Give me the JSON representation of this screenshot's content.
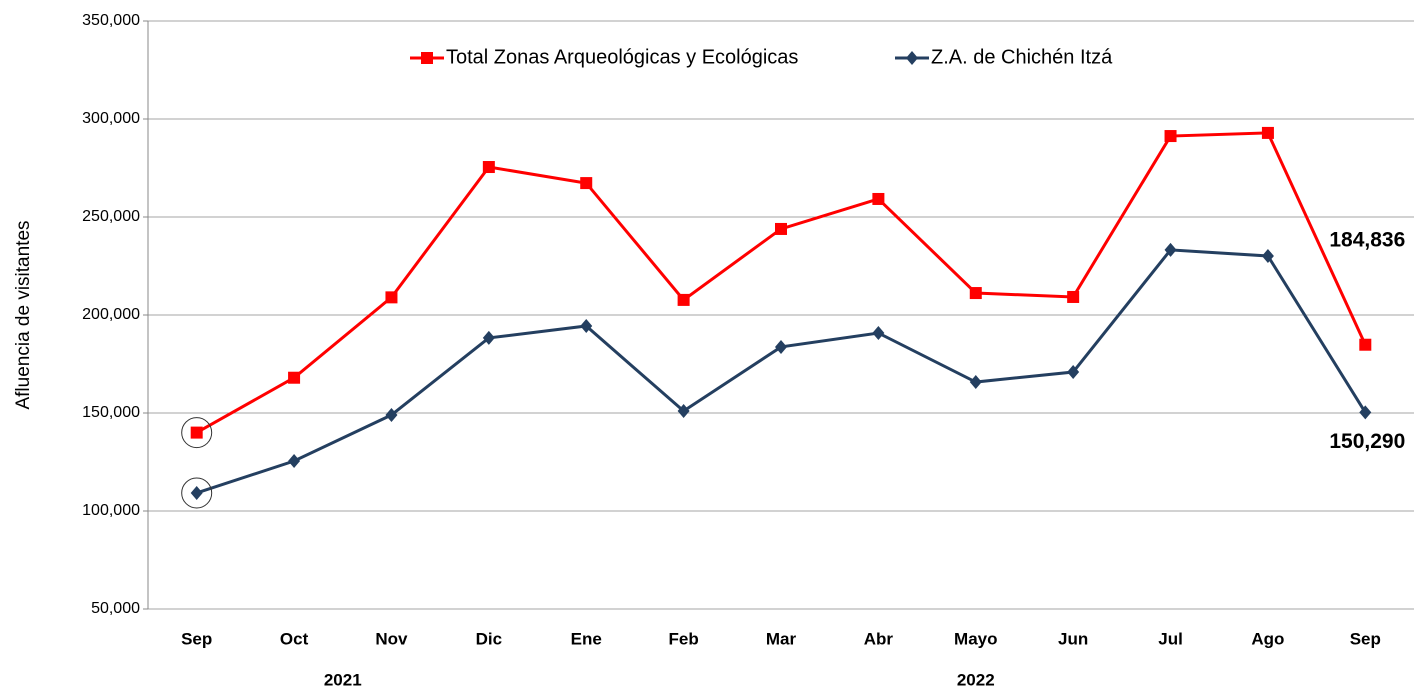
{
  "chart_data": {
    "type": "line",
    "y_label": "Afluencia de visitantes",
    "categories": [
      "Sep",
      "Oct",
      "Nov",
      "Dic",
      "Ene",
      "Feb",
      "Mar",
      "Abr",
      "Mayo",
      "Jun",
      "Jul",
      "Ago",
      "Sep"
    ],
    "x_group_labels": [
      "2021",
      "2022"
    ],
    "series": [
      {
        "name": "Total Zonas Arqueológicas y Ecológicas",
        "color": "#ff0000",
        "marker": "square",
        "values": [
          140000,
          168000,
          209000,
          275500,
          267300,
          207700,
          243900,
          259200,
          211200,
          209200,
          291300,
          292900,
          184836
        ],
        "value_labels": [
          null,
          null,
          null,
          null,
          null,
          null,
          null,
          null,
          null,
          null,
          null,
          null,
          "184,836"
        ]
      },
      {
        "name": "Z.A. de Chichén Itzá",
        "color": "#243f60",
        "marker": "diamond",
        "values": [
          109200,
          125500,
          149000,
          188300,
          194400,
          151000,
          183700,
          190800,
          165800,
          170900,
          233200,
          230100,
          150290
        ],
        "value_labels": [
          null,
          null,
          null,
          null,
          null,
          null,
          null,
          null,
          null,
          null,
          null,
          null,
          "150,290"
        ]
      }
    ],
    "ylim": [
      50000,
      350000
    ],
    "yticks": [
      {
        "value": 50000,
        "label": "50,000"
      },
      {
        "value": 100000,
        "label": "100,000"
      },
      {
        "value": 150000,
        "label": "150,000"
      },
      {
        "value": 200000,
        "label": "200,000"
      },
      {
        "value": 250000,
        "label": "250,000"
      },
      {
        "value": 300000,
        "label": "300,000"
      },
      {
        "value": 350000,
        "label": "350,000"
      }
    ],
    "grid": true
  }
}
